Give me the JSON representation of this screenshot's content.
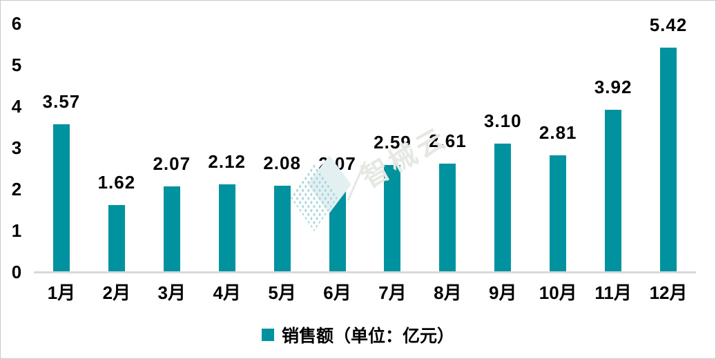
{
  "chart_data": {
    "type": "bar",
    "title": "",
    "categories": [
      "1月",
      "2月",
      "3月",
      "4月",
      "5月",
      "6月",
      "7月",
      "8月",
      "9月",
      "10月",
      "11月",
      "12月"
    ],
    "series": [
      {
        "name": "销售额（单位：亿元）",
        "values": [
          3.57,
          1.62,
          2.07,
          2.12,
          2.08,
          2.07,
          2.59,
          2.61,
          3.1,
          2.81,
          3.92,
          5.42
        ]
      }
    ],
    "value_labels": [
      "3.57",
      "1.62",
      "2.07",
      "2.12",
      "2.08",
      "2.07",
      "2.59",
      "2.61",
      "3.10",
      "2.81",
      "3.92",
      "5.42"
    ],
    "xlabel": "",
    "ylabel": "",
    "ylim": [
      0,
      6
    ],
    "yticks": [
      0,
      1,
      2,
      3,
      4,
      5,
      6
    ],
    "grid": false,
    "legend_position": "bottom",
    "bar_color": "#00929f",
    "baseline_color": "#d9d9d9"
  },
  "legend": {
    "label": "销售额（单位：亿元）",
    "swatch_color": "#00929f"
  },
  "watermark": {
    "text": "智械云"
  }
}
